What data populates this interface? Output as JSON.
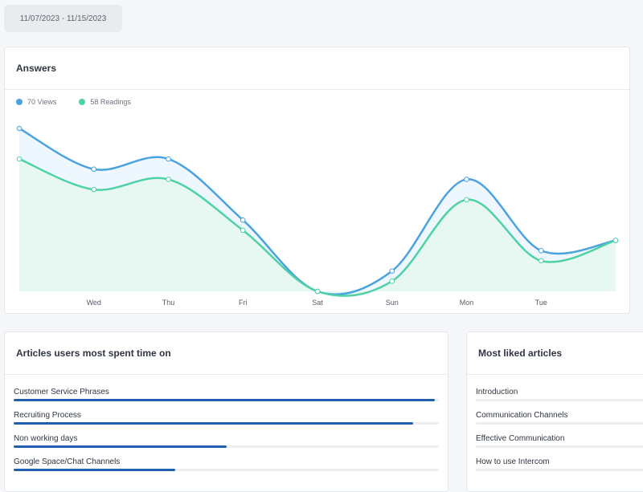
{
  "date_range": "11/07/2023 - 11/15/2023",
  "answers": {
    "title": "Answers",
    "legend": [
      {
        "label": "70 Views",
        "color": "#4aa3df"
      },
      {
        "label": "58 Readings",
        "color": "#4fd1a7"
      }
    ]
  },
  "chart_data": {
    "type": "area",
    "categories": [
      "",
      "Wed",
      "Thu",
      "Fri",
      "Sat",
      "Sun",
      "Mon",
      "Tue",
      ""
    ],
    "x_labels": [
      "Wed",
      "Thu",
      "Fri",
      "Sat",
      "Sun",
      "Mon",
      "Tue"
    ],
    "series": [
      {
        "name": "Views",
        "color": "#4aa3df",
        "fill": "#eef7fd",
        "values": [
          16,
          12,
          13,
          7,
          0,
          2,
          11,
          4,
          5
        ]
      },
      {
        "name": "Readings",
        "color": "#4fd1a7",
        "fill": "#e6f8f1",
        "values": [
          13,
          10,
          11,
          6,
          0,
          1,
          9,
          3,
          5
        ]
      }
    ],
    "ylim": [
      0,
      16
    ],
    "grid": false
  },
  "articles_time": {
    "title": "Articles users most spent time on",
    "items": [
      {
        "label": "Customer Service Phrases",
        "value": 0.99
      },
      {
        "label": "Recruiting Process",
        "value": 0.94
      },
      {
        "label": "Non working days",
        "value": 0.5
      },
      {
        "label": "Google Space/Chat Channels",
        "value": 0.38
      }
    ]
  },
  "most_liked": {
    "title": "Most liked articles",
    "items": [
      {
        "label": "Introduction",
        "value": 0
      },
      {
        "label": "Communication Channels",
        "value": 0
      },
      {
        "label": "Effective Communication",
        "value": 0
      },
      {
        "label": "How to use Intercom",
        "value": 0
      }
    ]
  }
}
